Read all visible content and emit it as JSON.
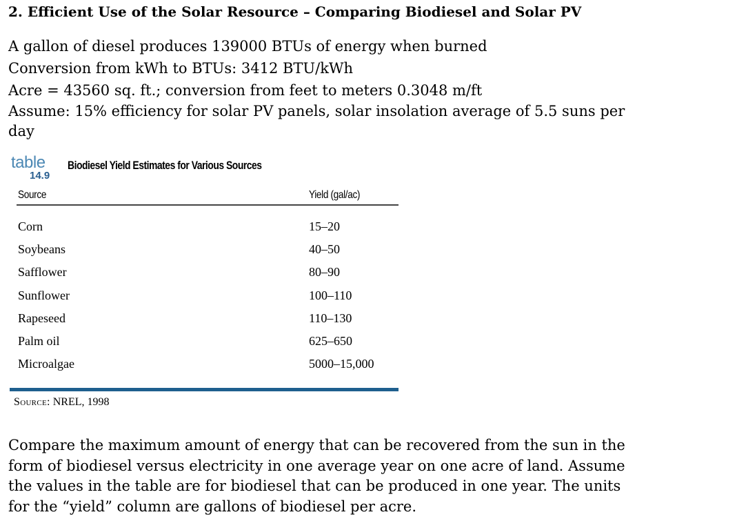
{
  "heading": "2.  Efficient Use of the Solar Resource – Comparing Biodiesel and Solar PV",
  "intro": {
    "line1": "A gallon of diesel produces 139000 BTUs of energy when burned",
    "line2": "Conversion from kWh to BTUs: 3412 BTU/kWh",
    "line3": "Acre = 43560 sq. ft.; conversion from feet to meters 0.3048 m/ft",
    "line4": "Assume: 15% efficiency for solar PV panels, solar insolation average of 5.5 suns per day"
  },
  "table": {
    "tag_word": "table",
    "tag_number": "14.9",
    "title": "Biodiesel Yield Estimates for Various Sources",
    "columns": [
      "Source",
      "Yield (gal/ac)"
    ],
    "rows": [
      {
        "source": "Corn",
        "yield": "15–20"
      },
      {
        "source": "Soybeans",
        "yield": "40–50"
      },
      {
        "source": "Safflower",
        "yield": "80–90"
      },
      {
        "source": "Sunflower",
        "yield": "100–110"
      },
      {
        "source": "Rapeseed",
        "yield": "110–130"
      },
      {
        "source": "Palm oil",
        "yield": "625–650"
      },
      {
        "source": "Microalgae",
        "yield": "5000–15,000"
      }
    ],
    "source_label": "Source:",
    "source_value": "NREL, 1998",
    "accent_color": "#1e5f8e"
  },
  "question": "Compare the maximum amount of energy that can be recovered from the sun in the form of biodiesel versus electricity in one average year on one acre of land.  Assume the values in the table are for biodiesel that can be produced in one year. The units for the “yield” column are gallons of biodiesel per acre."
}
